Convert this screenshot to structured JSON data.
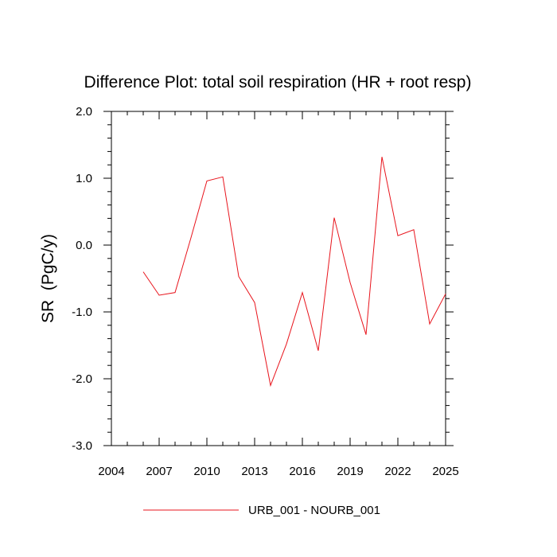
{
  "chart_data": {
    "type": "line",
    "title": "Difference Plot: total soil respiration (HR + root resp)",
    "xlabel": "",
    "ylabel": "SR  (PgC/y)",
    "xlim": [
      2004,
      2025
    ],
    "ylim": [
      -3.0,
      2.0
    ],
    "xticks": [
      "2004",
      "2007",
      "2010",
      "2013",
      "2016",
      "2019",
      "2022",
      "2025"
    ],
    "yticks": [
      "-3.0",
      "-2.0",
      "-1.0",
      "0.0",
      "1.0",
      "2.0"
    ],
    "grid": false,
    "legend_position": "bottom",
    "series": [
      {
        "name": "URB_001 - NOURB_001",
        "color": "#e8141c",
        "x": [
          2006,
          2007,
          2008,
          2009,
          2010,
          2011,
          2012,
          2013,
          2014,
          2015,
          2016,
          2017,
          2018,
          2019,
          2020,
          2021,
          2022,
          2023,
          2024,
          2025
        ],
        "values": [
          -0.4,
          -0.75,
          -0.71,
          0.11,
          0.96,
          1.02,
          -0.47,
          -0.86,
          -2.1,
          -1.48,
          -0.71,
          -1.58,
          0.41,
          -0.56,
          -1.34,
          1.32,
          0.14,
          0.23,
          -1.18,
          -0.73
        ]
      }
    ]
  }
}
